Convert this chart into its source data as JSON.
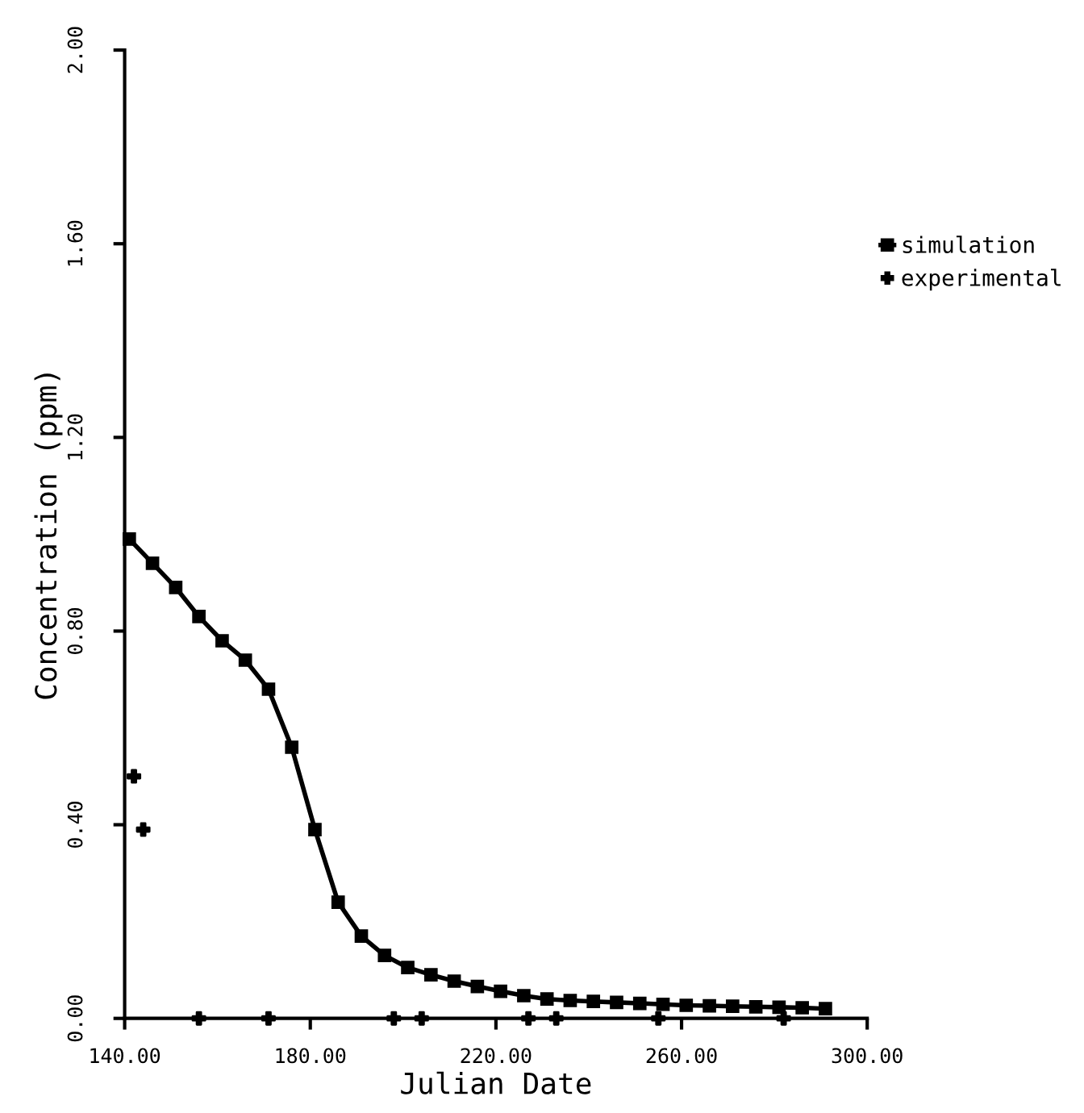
{
  "chart_data": {
    "type": "line",
    "xlabel": "Julian Date",
    "ylabel": "Concentration (ppm)",
    "xlim": [
      140,
      300
    ],
    "xticks": [
      {
        "value": 140,
        "label": "140.00"
      },
      {
        "value": 180,
        "label": "180.00"
      },
      {
        "value": 220,
        "label": "220.00"
      },
      {
        "value": 260,
        "label": "260.00"
      },
      {
        "value": 300,
        "label": "300.00"
      }
    ],
    "ylim": [
      0,
      2
    ],
    "yticks": [
      {
        "value": 0,
        "label": "0.00"
      },
      {
        "value": 0.4,
        "label": "0.40"
      },
      {
        "value": 0.8,
        "label": "0.80"
      },
      {
        "value": 1.2,
        "label": "1.20"
      },
      {
        "value": 1.6,
        "label": "1.60"
      },
      {
        "value": 2,
        "label": "2.00"
      }
    ],
    "grid": false,
    "legend": "right",
    "series": [
      {
        "name": "simulation",
        "color": "#000000",
        "marker": "square",
        "line_style": "solid",
        "x": [
          141,
          146,
          151,
          156,
          161,
          166,
          171,
          176,
          181,
          186,
          191,
          196,
          201,
          206,
          211,
          216,
          221,
          226,
          231,
          236,
          241,
          246,
          251,
          256,
          261,
          266,
          271,
          276,
          281,
          286,
          291
        ],
        "values": [
          0.99,
          0.94,
          0.89,
          0.83,
          0.78,
          0.74,
          0.68,
          0.56,
          0.39,
          0.24,
          0.17,
          0.13,
          0.105,
          0.09,
          0.077,
          0.066,
          0.056,
          0.047,
          0.04,
          0.037,
          0.035,
          0.033,
          0.031,
          0.029,
          0.027,
          0.026,
          0.025,
          0.024,
          0.023,
          0.022,
          0.02
        ]
      },
      {
        "name": "experimental",
        "type": "scatter",
        "color": "#000000",
        "marker": "cross",
        "x": [
          142,
          144,
          156,
          171,
          198,
          204,
          227,
          233,
          255,
          282
        ],
        "values": [
          0.5,
          0.39,
          0,
          0,
          0,
          0,
          0,
          0,
          0,
          0
        ]
      }
    ]
  }
}
